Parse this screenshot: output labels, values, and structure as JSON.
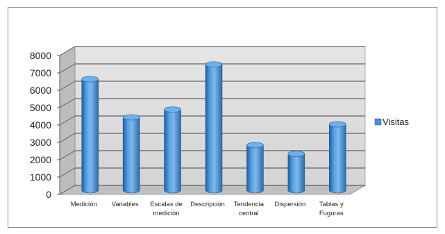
{
  "chart_data": {
    "type": "bar",
    "style": "3d-cylinder",
    "title": "",
    "xlabel": "",
    "ylabel": "",
    "ylim": [
      0,
      8000
    ],
    "yticks": [
      0,
      1000,
      2000,
      3000,
      4000,
      5000,
      6000,
      7000,
      8000
    ],
    "categories": [
      [
        "Medición"
      ],
      [
        "Variables"
      ],
      [
        "Escalas de",
        "medición"
      ],
      [
        "Descripción"
      ],
      [
        "Tendencia",
        "central"
      ],
      [
        "Dispersión"
      ],
      [
        "Tablas y",
        "Fuguras"
      ]
    ],
    "series": [
      {
        "name": "Visitas",
        "color": "#4a8fd1",
        "values": [
          6400,
          4200,
          4650,
          7250,
          2600,
          2100,
          3800
        ]
      }
    ],
    "grid": true,
    "legend": "right",
    "wall_color": "#d9d9d9",
    "floor_color": "#c0c0c0"
  }
}
